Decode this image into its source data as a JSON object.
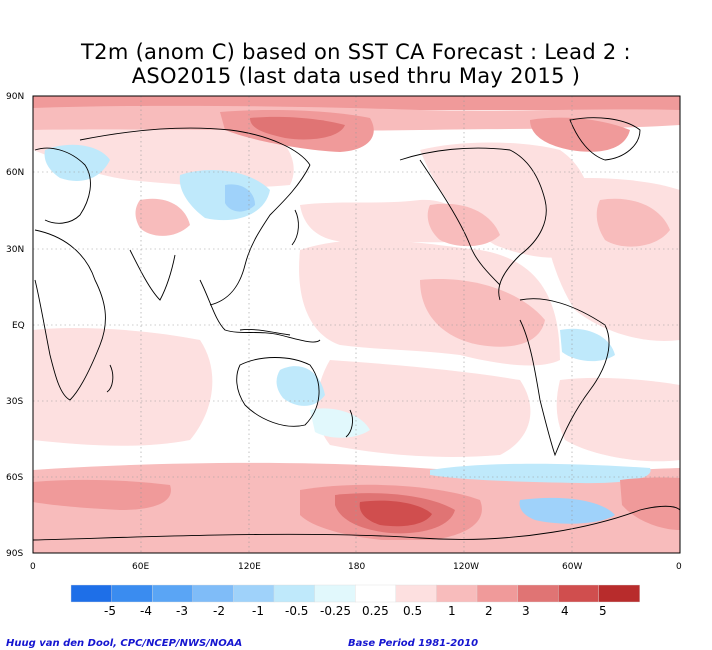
{
  "title": {
    "line1": "T2m (anom C) based on SST CA Forecast : Lead 2 :",
    "line2": "ASO2015 (last data used thru May 2015 )"
  },
  "axes": {
    "lat_labels": [
      "90N",
      "60N",
      "30N",
      "EQ",
      "30S",
      "60S",
      "90S"
    ],
    "lon_labels": [
      "0",
      "60E",
      "120E",
      "180",
      "120W",
      "60W",
      "0"
    ]
  },
  "colorbar": {
    "labels": [
      "-5",
      "-4",
      "-3",
      "-2",
      "-1",
      "-0.5",
      "-0.25",
      "0.25",
      "0.5",
      "1",
      "2",
      "3",
      "4",
      "5"
    ],
    "colors": [
      "#1e6fe8",
      "#3a8cf0",
      "#5aa5f5",
      "#7fbcf8",
      "#9fd2fa",
      "#bfe9fb",
      "#e1f8fc",
      "#ffffff",
      "#fde0e0",
      "#f8bcbc",
      "#f09a9a",
      "#e07474",
      "#d04e4e",
      "#b82c2c"
    ]
  },
  "credits": {
    "left": "Huug van den Dool, CPC/NCEP/NWS/NOAA",
    "right": "Base Period 1981-2010"
  }
}
